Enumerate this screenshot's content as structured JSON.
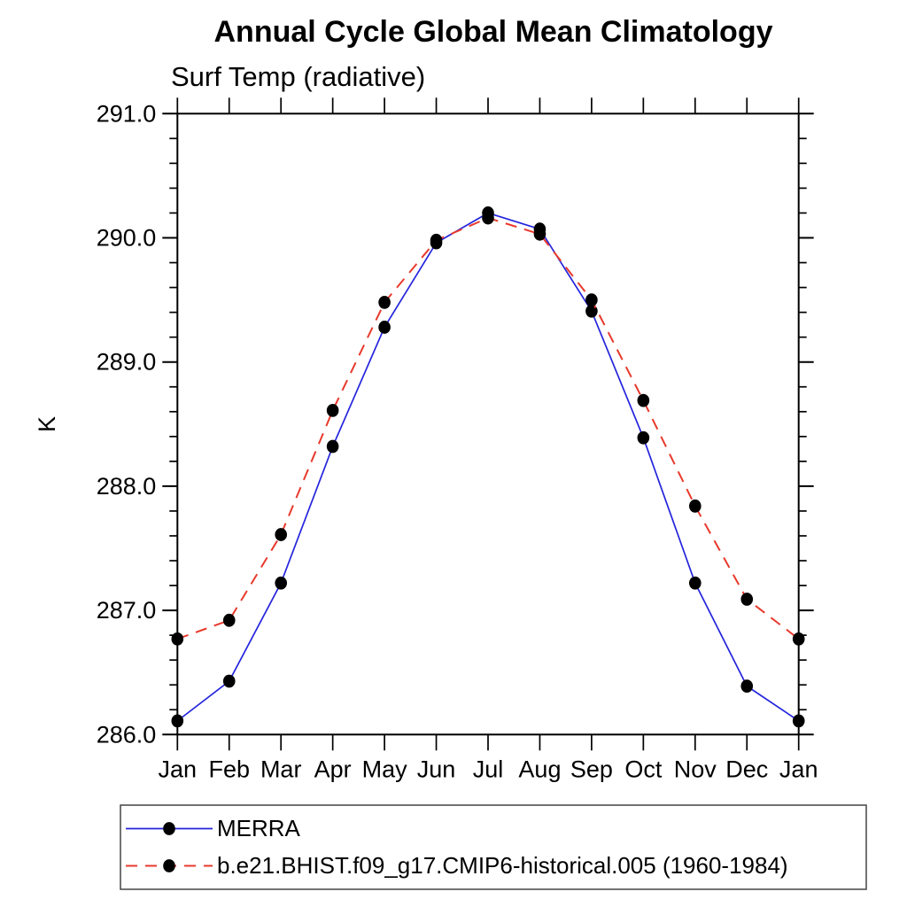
{
  "title": "Annual Cycle Global Mean Climatology",
  "chart_data": {
    "type": "line",
    "title": "Annual Cycle Global Mean Climatology",
    "subtitle": "Surf Temp (radiative)",
    "ylabel": "K",
    "xlabel": "",
    "categories": [
      "Jan",
      "Feb",
      "Mar",
      "Apr",
      "May",
      "Jun",
      "Jul",
      "Aug",
      "Sep",
      "Oct",
      "Nov",
      "Dec",
      "Jan"
    ],
    "series": [
      {
        "name": "MERRA",
        "line_style": "solid",
        "line_color": "#2424dd",
        "marker": "filled-circle",
        "marker_color": "#000000",
        "values": [
          286.11,
          286.43,
          287.22,
          288.32,
          289.28,
          289.96,
          290.2,
          290.07,
          289.41,
          288.39,
          287.22,
          286.39,
          286.11
        ]
      },
      {
        "name": "b.e21.BHIST.f09_g17.CMIP6-historical.005 (1960-1984)",
        "line_style": "dashed",
        "line_color": "#e8392c",
        "marker": "filled-circle",
        "marker_color": "#000000",
        "values": [
          286.77,
          286.92,
          287.61,
          288.61,
          289.48,
          289.98,
          290.16,
          290.03,
          289.5,
          288.69,
          287.84,
          287.09,
          286.77
        ]
      }
    ],
    "ylim": [
      286.0,
      291.0
    ],
    "ytick_interval": 1.0,
    "yminor_interval": 0.2,
    "ytick_labels": [
      "286.0",
      "287.0",
      "288.0",
      "289.0",
      "290.0",
      "291.0"
    ],
    "grid": false,
    "legend_position": "bottom-left-box",
    "axis_color": "#000000"
  },
  "legend": {
    "items": [
      {
        "label": "MERRA"
      },
      {
        "label": "b.e21.BHIST.f09_g17.CMIP6-historical.005 (1960-1984)"
      }
    ]
  }
}
